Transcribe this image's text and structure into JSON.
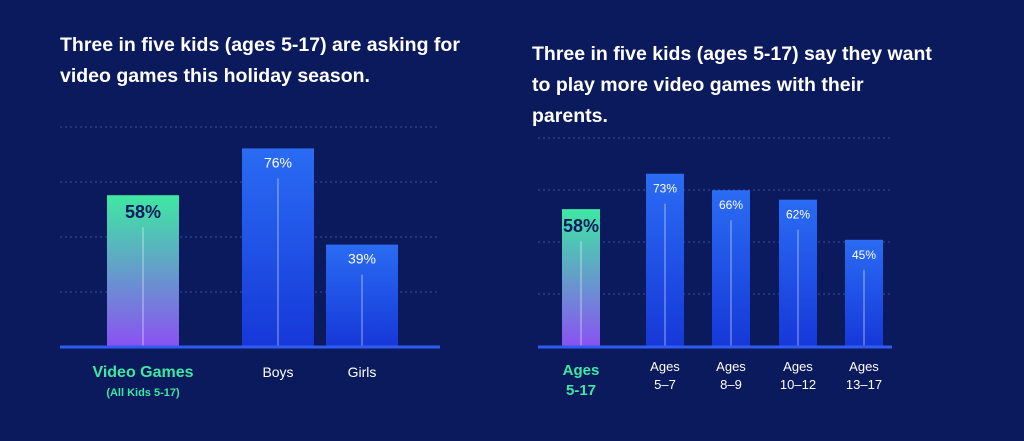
{
  "chart_data": [
    {
      "type": "bar",
      "title": "Three in five kids (ages 5-17) are asking for video games this holiday season.",
      "categories": [
        [
          "Video Games",
          "(All Kids 5-17)"
        ],
        [
          "Boys"
        ],
        [
          "Girls"
        ]
      ],
      "values": [
        58,
        76,
        39
      ],
      "value_labels": [
        "58%",
        "76%",
        "39%"
      ],
      "highlight_index": 0,
      "ylim": [
        0,
        100
      ],
      "grid": true
    },
    {
      "type": "bar",
      "title": "Three in five kids (ages 5-17) say they want to play more video games with their parents.",
      "categories": [
        [
          "Ages",
          "5-17"
        ],
        [
          "Ages",
          "5–7"
        ],
        [
          "Ages",
          "8–9"
        ],
        [
          "Ages",
          "10–12"
        ],
        [
          "Ages",
          "13–17"
        ]
      ],
      "values": [
        58,
        73,
        66,
        62,
        45
      ],
      "value_labels": [
        "58%",
        "73%",
        "66%",
        "62%",
        "45%"
      ],
      "highlight_index": 0,
      "ylim": [
        0,
        100
      ],
      "grid": true
    }
  ],
  "colors": {
    "background": "#0b1a5c",
    "highlight_top": "#3ee8a2",
    "highlight_bottom": "#8a52f2",
    "bar_top": "#2a6cf3",
    "bar_bottom": "#1638d8",
    "highlight_label": "#3ee8a2",
    "axis_label": "#ffffff",
    "grid": "#3a4f9a"
  }
}
